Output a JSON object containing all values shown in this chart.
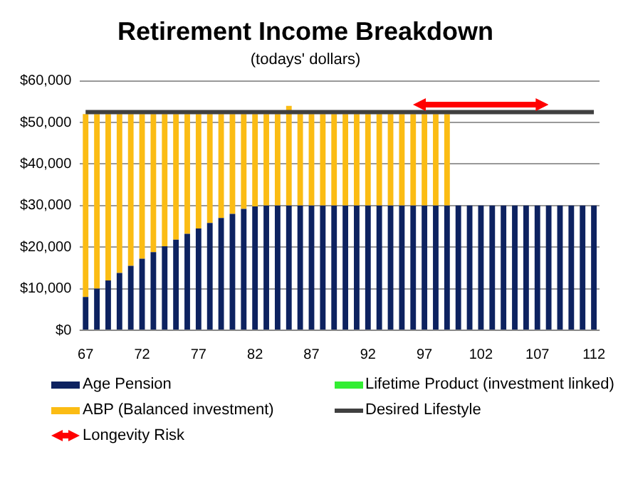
{
  "chart_data": {
    "type": "bar",
    "title": "Retirement Income Breakdown",
    "subtitle": "(todays' dollars)",
    "categories": [
      "67",
      null,
      null,
      null,
      null,
      "72",
      null,
      null,
      null,
      null,
      "77",
      null,
      null,
      null,
      null,
      "82",
      null,
      null,
      null,
      null,
      "87",
      null,
      null,
      null,
      null,
      "92",
      null,
      null,
      null,
      null,
      "97",
      null,
      null,
      null,
      null,
      "102",
      null,
      null,
      null,
      null,
      "107",
      null,
      null,
      null,
      null,
      "112"
    ],
    "stacked": true,
    "series": [
      {
        "name": "Age Pension",
        "color": "#0d2260",
        "values": [
          8000,
          10000,
          12000,
          13800,
          15500,
          17200,
          18800,
          20200,
          21800,
          23200,
          24500,
          25800,
          27000,
          28000,
          29200,
          29800,
          30000,
          30000,
          30000,
          30000,
          30000,
          30000,
          30000,
          30000,
          30000,
          30000,
          30000,
          30000,
          30000,
          30000,
          30000,
          30000,
          30000,
          30000,
          30000,
          30000,
          30000,
          30000,
          30000,
          30000,
          30000,
          30000,
          30000,
          30000,
          30000,
          30000
        ]
      },
      {
        "name": "Lifetime Product (investment linked)",
        "color": "#33ee33",
        "values": [
          null,
          null,
          null,
          null,
          null,
          null,
          null,
          null,
          null,
          null,
          null,
          null,
          null,
          null,
          null,
          null,
          null,
          null,
          null,
          null,
          null,
          null,
          null,
          null,
          null,
          null,
          null,
          null,
          null,
          null,
          null,
          null,
          null,
          null,
          null,
          null,
          null,
          null,
          null,
          null,
          null,
          null,
          null,
          null,
          null,
          null
        ]
      },
      {
        "name": "ABP (Balanced investment)",
        "color": "#fbbc14",
        "values": [
          44000,
          42000,
          40000,
          38200,
          36500,
          34800,
          33200,
          31800,
          30200,
          28800,
          27500,
          26200,
          25000,
          24000,
          22800,
          22200,
          22000,
          22000,
          24000,
          22000,
          22000,
          22000,
          22000,
          22000,
          22000,
          22000,
          22000,
          22000,
          22000,
          22000,
          22000,
          22000,
          22000,
          null,
          null,
          null,
          null,
          null,
          null,
          null,
          null,
          null,
          null,
          null,
          null,
          null
        ]
      },
      {
        "name": "Desired Lifestyle",
        "type": "line",
        "color": "#404040",
        "values": [
          52500,
          52500,
          52500,
          52500,
          52500,
          52500,
          52500,
          52500,
          52500,
          52500,
          52500,
          52500,
          52500,
          52500,
          52500,
          52500,
          52500,
          52500,
          52500,
          52500,
          52500,
          52500,
          52500,
          52500,
          52500,
          52500,
          52500,
          52500,
          52500,
          52500,
          52500,
          52500,
          52500,
          52500,
          52500,
          52500,
          52500,
          52500,
          52500,
          52500,
          52500,
          52500,
          52500,
          52500,
          52500,
          52500
        ]
      }
    ],
    "annotations": [
      "Longevity Risk"
    ],
    "ylim": [
      0,
      60000
    ],
    "yticks": [
      {
        "value": 0,
        "label": "$0"
      },
      {
        "value": 10000,
        "label": "$10,000"
      },
      {
        "value": 20000,
        "label": "$20,000"
      },
      {
        "value": 30000,
        "label": "$30,000"
      },
      {
        "value": 40000,
        "label": "$40,000"
      },
      {
        "value": 50000,
        "label": "$50,000"
      },
      {
        "value": 60000,
        "label": "$60,000"
      }
    ],
    "grid": "y",
    "legend": "bottom",
    "marker": "none",
    "line_style": "solid"
  }
}
